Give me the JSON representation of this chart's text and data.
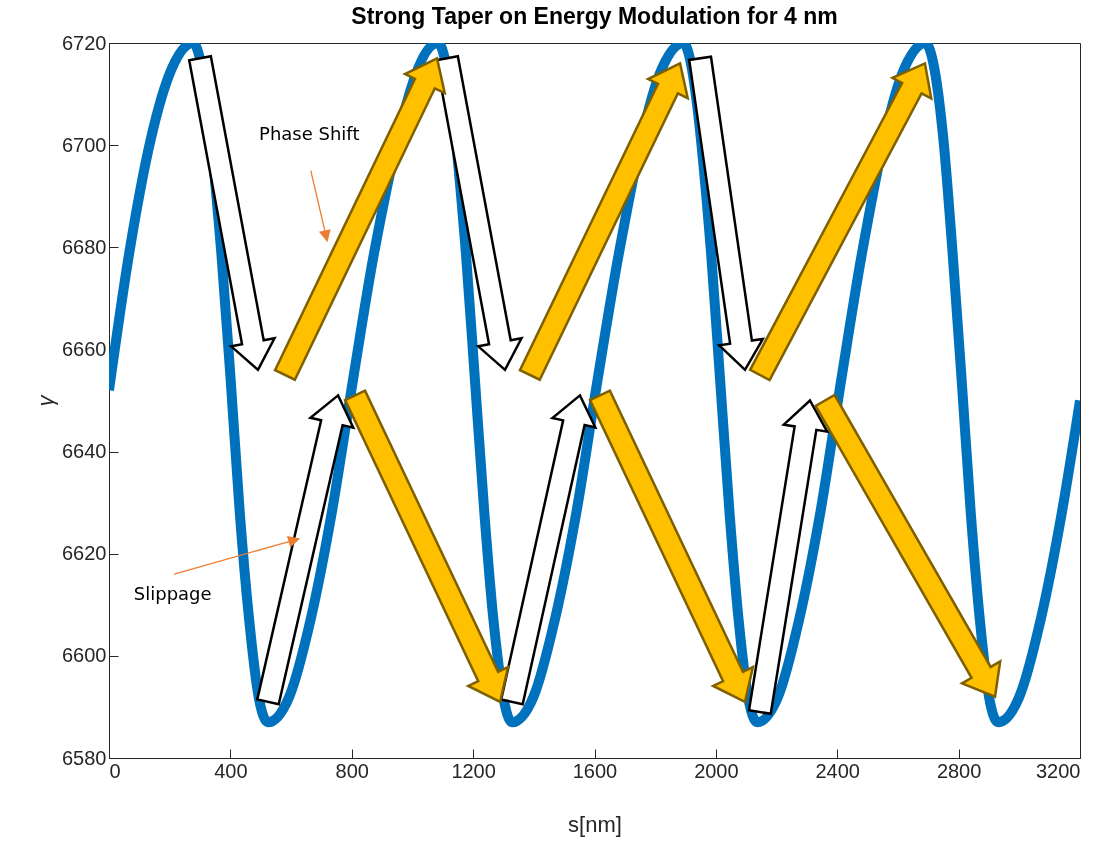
{
  "chart_data": {
    "type": "line",
    "title": "Strong Taper on Energy Modulation for 4 nm",
    "xlabel": "s[nm]",
    "ylabel": "γ",
    "x": [
      0,
      67,
      137,
      207,
      277,
      370,
      401,
      431,
      462,
      493,
      524,
      594,
      664,
      734,
      804,
      874,
      1084,
      1176,
      1206,
      1237,
      1267,
      1328,
      1399,
      1469,
      1540,
      1610,
      1681,
      1822,
      1892,
      1984,
      2014,
      2045,
      2075,
      2106,
      2136,
      2205,
      2274,
      2344,
      2413,
      2482,
      2621,
      2690,
      2720,
      2750,
      2780,
      2810,
      2840,
      2870,
      2900,
      2930,
      3000,
      3070,
      3140,
      3200
    ],
    "series": [
      {
        "color": "#0072bd",
        "values": [
          6652,
          6679,
          6701,
          6715,
          6720,
          6679,
          6654,
          6628,
          6607,
          6592,
          6587,
          6592,
          6607,
          6628,
          6654,
          6679,
          6720,
          6679,
          6654,
          6628,
          6607,
          6587,
          6592,
          6607,
          6628,
          6654,
          6679,
          6715,
          6720,
          6679,
          6654,
          6628,
          6607,
          6592,
          6587,
          6592,
          6607,
          6628,
          6654,
          6679,
          6715,
          6720,
          6715,
          6701,
          6679,
          6654,
          6628,
          6607,
          6592,
          6587,
          6592,
          6607,
          6628,
          6650
        ]
      }
    ],
    "xlim": [
      0,
      3200
    ],
    "ylim": [
      6580,
      6720
    ],
    "xticks": [
      0,
      400,
      800,
      1200,
      1600,
      2000,
      2400,
      2800,
      3200
    ],
    "yticks": [
      6580,
      6600,
      6620,
      6640,
      6660,
      6680,
      6700,
      6720
    ],
    "annotations": [
      "Phase Shift",
      "Slippage"
    ]
  }
}
